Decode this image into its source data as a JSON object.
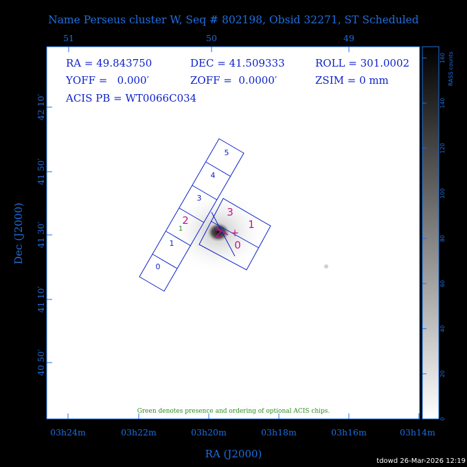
{
  "title": "Name Perseus cluster W, Seq # 802198, Obsid 32271, ST Scheduled",
  "info": {
    "ra": "RA = 49.843750",
    "dec": "DEC = 41.509333",
    "roll": "ROLL = 301.0002",
    "yoff": "YOFF =   0.000′",
    "zoff": "ZOFF =  0.0000′",
    "zsim": "ZSIM = 0 mm",
    "acis": "ACIS PB = WT0066C034"
  },
  "note": "Green denotes presence and ordering of optional ACIS chips.",
  "footer": "tdowd 26-Mar-2026 12:19",
  "colorbar": {
    "label": "RASS counts",
    "ticks": [
      "0",
      "20",
      "40",
      "60",
      "80",
      "100",
      "120",
      "140",
      "160"
    ],
    "max": 165
  },
  "acis_chips": {
    "s_array": [
      "0",
      "1",
      "2",
      "3",
      "4",
      "5"
    ],
    "i_array": [
      "3",
      "1",
      "2",
      "0"
    ],
    "optional": [
      "1"
    ]
  },
  "chart_data": {
    "type": "image",
    "title": "Name Perseus cluster W, Seq # 802198, Obsid 32271, ST Scheduled",
    "xlabel": "RA (J2000)",
    "ylabel": "Dec (J2000)",
    "x_ticks_bottom": [
      "03h24m",
      "03h22m",
      "03h20m",
      "03h18m",
      "03h16m",
      "03h14m"
    ],
    "x_ticks_top": [
      "51",
      "50",
      "49"
    ],
    "y_ticks": [
      "42 10′",
      "41 50′",
      "41 30′",
      "41 10′",
      "40 50′"
    ],
    "colorscale": "grayscale",
    "colorbar_label": "RASS counts",
    "colorbar_range": [
      0,
      165
    ]
  }
}
